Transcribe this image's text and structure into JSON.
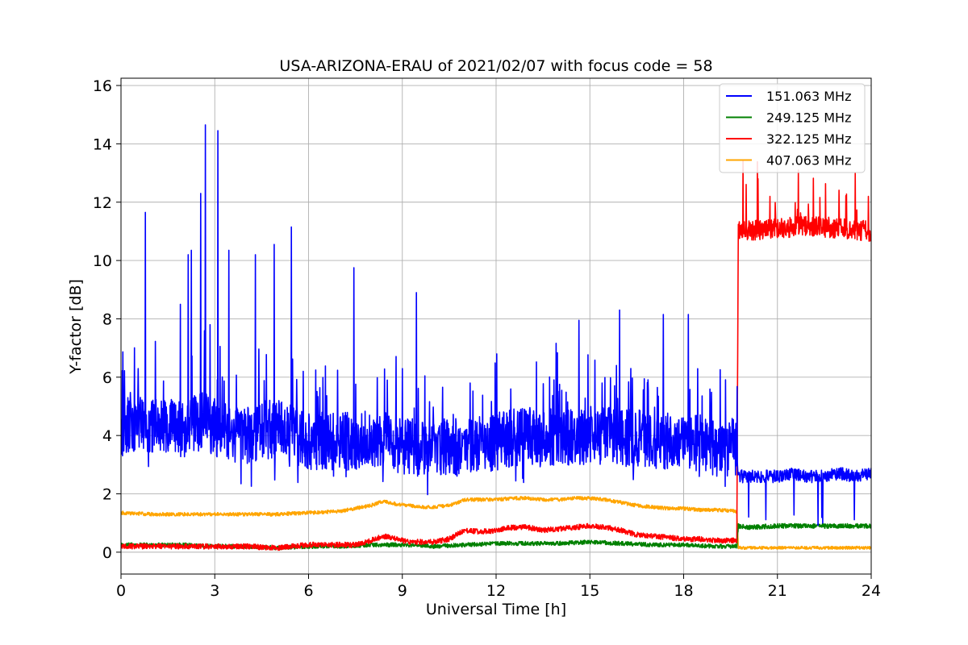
{
  "chart_data": {
    "type": "line",
    "title": "USA-ARIZONA-ERAU of 2021/02/07 with focus code = 58",
    "xlabel": "Universal Time [h]",
    "ylabel": "Y-factor [dB]",
    "xlim": [
      0,
      24
    ],
    "ylim": [
      -0.75,
      16.25
    ],
    "xticks": [
      0,
      3,
      6,
      9,
      12,
      15,
      18,
      21,
      24
    ],
    "yticks": [
      0,
      2,
      4,
      6,
      8,
      10,
      12,
      14,
      16
    ],
    "grid": true,
    "legend_position": "top-right",
    "series": [
      {
        "name": "151.063 MHz",
        "color": "#0000ff",
        "x": [
          0,
          0.5,
          1,
          1.5,
          2,
          2.5,
          3,
          3.5,
          4,
          4.5,
          5,
          5.5,
          6,
          6.5,
          7,
          7.5,
          8,
          8.5,
          9,
          9.5,
          10,
          10.5,
          11,
          11.5,
          12,
          12.5,
          13,
          13.5,
          14,
          14.5,
          15,
          15.5,
          16,
          16.5,
          17,
          17.5,
          18,
          18.5,
          19,
          19.5,
          19.7,
          19.75,
          20,
          20.5,
          21,
          21.5,
          22,
          22.5,
          23,
          23.5,
          24
        ],
        "values": [
          4.2,
          4.5,
          4.3,
          4.4,
          4.2,
          4.6,
          4.3,
          4.1,
          4.0,
          4.1,
          4.3,
          4.0,
          3.8,
          3.8,
          3.8,
          3.8,
          3.9,
          3.8,
          3.6,
          3.6,
          3.6,
          3.6,
          3.6,
          3.7,
          3.8,
          3.9,
          4.0,
          3.9,
          4.0,
          3.9,
          4.0,
          4.0,
          3.9,
          3.9,
          3.8,
          3.8,
          3.7,
          3.8,
          3.6,
          3.6,
          3.6,
          2.6,
          2.6,
          2.6,
          2.6,
          2.7,
          2.6,
          2.6,
          2.7,
          2.6,
          2.7
        ],
        "peaks": [
          {
            "x": 0.78,
            "y": 11.65
          },
          {
            "x": 1.9,
            "y": 8.5
          },
          {
            "x": 2.15,
            "y": 10.2
          },
          {
            "x": 2.25,
            "y": 10.35
          },
          {
            "x": 2.55,
            "y": 12.3
          },
          {
            "x": 2.7,
            "y": 14.65
          },
          {
            "x": 2.85,
            "y": 7.8
          },
          {
            "x": 3.1,
            "y": 14.45
          },
          {
            "x": 3.45,
            "y": 10.35
          },
          {
            "x": 4.3,
            "y": 10.2
          },
          {
            "x": 4.9,
            "y": 10.55
          },
          {
            "x": 5.45,
            "y": 11.15
          },
          {
            "x": 7.45,
            "y": 9.75
          },
          {
            "x": 9.45,
            "y": 8.9
          },
          {
            "x": 14.65,
            "y": 7.95
          },
          {
            "x": 15.95,
            "y": 8.3
          },
          {
            "x": 17.35,
            "y": 8.15
          },
          {
            "x": 18.15,
            "y": 8.15
          }
        ]
      },
      {
        "name": "249.125 MHz",
        "color": "#008000",
        "x": [
          0,
          1,
          2,
          3,
          4,
          5,
          6,
          7,
          8,
          9,
          10,
          11,
          12,
          13,
          14,
          15,
          16,
          17,
          18,
          19,
          19.7,
          19.75,
          20,
          21,
          22,
          23,
          24
        ],
        "values": [
          0.25,
          0.25,
          0.25,
          0.2,
          0.2,
          0.15,
          0.2,
          0.2,
          0.25,
          0.25,
          0.2,
          0.25,
          0.3,
          0.3,
          0.3,
          0.35,
          0.3,
          0.25,
          0.25,
          0.2,
          0.2,
          0.9,
          0.85,
          0.9,
          0.9,
          0.9,
          0.9
        ]
      },
      {
        "name": "322.125 MHz",
        "color": "#ff0000",
        "x": [
          0,
          1,
          2,
          3,
          4,
          5,
          6,
          7,
          7.5,
          8,
          8.4,
          8.8,
          9.2,
          9.6,
          10,
          10.5,
          11,
          11.5,
          12,
          12.5,
          13,
          13.5,
          14,
          14.5,
          15,
          15.5,
          16,
          16.5,
          17,
          17.5,
          18,
          18.5,
          19,
          19.7,
          19.75,
          20,
          21,
          22,
          23,
          24
        ],
        "values": [
          0.2,
          0.2,
          0.2,
          0.2,
          0.2,
          0.15,
          0.25,
          0.25,
          0.25,
          0.4,
          0.55,
          0.45,
          0.35,
          0.35,
          0.35,
          0.45,
          0.75,
          0.7,
          0.75,
          0.85,
          0.85,
          0.75,
          0.8,
          0.85,
          0.9,
          0.85,
          0.75,
          0.6,
          0.55,
          0.5,
          0.45,
          0.45,
          0.4,
          0.4,
          11.1,
          11.0,
          11.1,
          11.2,
          11.1,
          11.0
        ]
      },
      {
        "name": "407.063 MHz",
        "color": "#ffa500",
        "x": [
          0,
          1,
          2,
          3,
          4,
          5,
          6,
          7,
          7.5,
          8,
          8.4,
          8.8,
          9.2,
          9.6,
          10,
          10.5,
          11,
          11.5,
          12,
          12.5,
          13,
          13.5,
          14,
          14.5,
          15,
          15.5,
          16,
          16.5,
          17,
          17.5,
          18,
          18.5,
          19,
          19.7,
          19.75,
          20,
          21,
          22,
          23,
          24
        ],
        "values": [
          1.35,
          1.3,
          1.3,
          1.3,
          1.3,
          1.3,
          1.35,
          1.4,
          1.5,
          1.6,
          1.75,
          1.65,
          1.6,
          1.55,
          1.55,
          1.6,
          1.8,
          1.8,
          1.8,
          1.85,
          1.85,
          1.8,
          1.8,
          1.85,
          1.85,
          1.8,
          1.7,
          1.6,
          1.55,
          1.5,
          1.5,
          1.45,
          1.45,
          1.4,
          0.15,
          0.15,
          0.15,
          0.15,
          0.15,
          0.15
        ]
      }
    ]
  }
}
